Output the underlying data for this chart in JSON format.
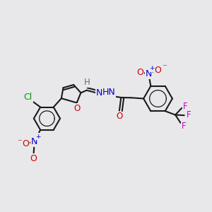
{
  "bg_color": "#e8e8eb",
  "bond_color": "#1a1a1a",
  "bond_lw": 1.5,
  "dbo": 0.012,
  "colors": {
    "C": "#1a1a1a",
    "O": "#cc0000",
    "N": "#0000cc",
    "Cl": "#009900",
    "F": "#cc00cc",
    "H": "#607070"
  },
  "fs": 8.5
}
